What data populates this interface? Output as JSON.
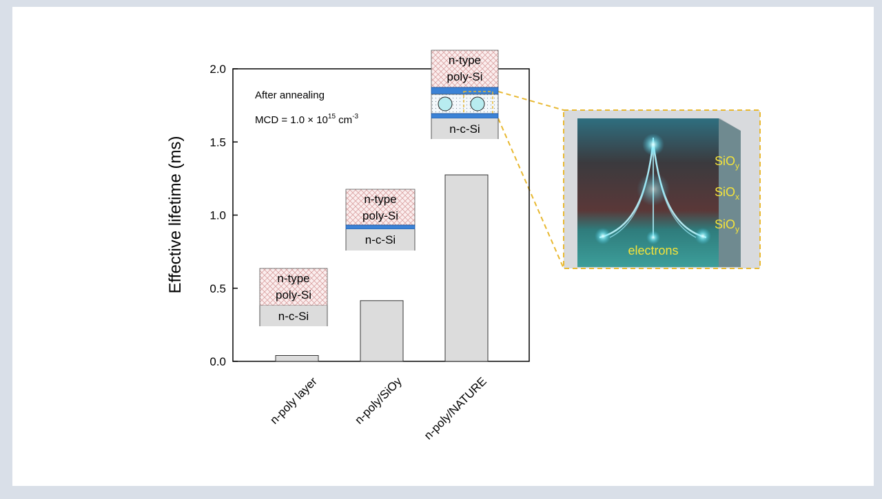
{
  "chart_data": {
    "type": "bar",
    "y_label": "Effective lifetime (ms)",
    "categories": [
      "n-poly layer",
      "n-poly/SiOy",
      "n-poly/NATURE"
    ],
    "values": [
      0.04,
      0.415,
      1.275
    ],
    "color": "#dcdcdc",
    "ylim": [
      0,
      2
    ],
    "yticks": [
      {
        "value": 0,
        "label": "0.0"
      },
      0.5,
      {
        "value": 1,
        "label": "1.0"
      },
      1.5,
      {
        "value": 2,
        "label": "2.0"
      }
    ],
    "annotations": {
      "condition": "After annealing",
      "mcd": {
        "text": "MCD = 1.0 × 10",
        "exp": "15",
        "unit": " cm",
        "unit_exp": "-3"
      }
    },
    "insets": [
      {
        "lines": [
          "n-type",
          "poly-Si"
        ],
        "substrate": "n-c-Si"
      },
      {
        "lines": [
          "n-type",
          "poly-Si"
        ],
        "substrate": "n-c-Si"
      },
      {
        "lines": [
          "n-type",
          "poly-Si"
        ],
        "substrate": "n-c-Si"
      }
    ],
    "image_labels": [
      {
        "base": "SiO",
        "sub": "y"
      },
      {
        "base": "SiO",
        "sub": "x"
      },
      {
        "base": "SiO",
        "sub": "y"
      },
      {
        "base": "electrons"
      }
    ]
  }
}
